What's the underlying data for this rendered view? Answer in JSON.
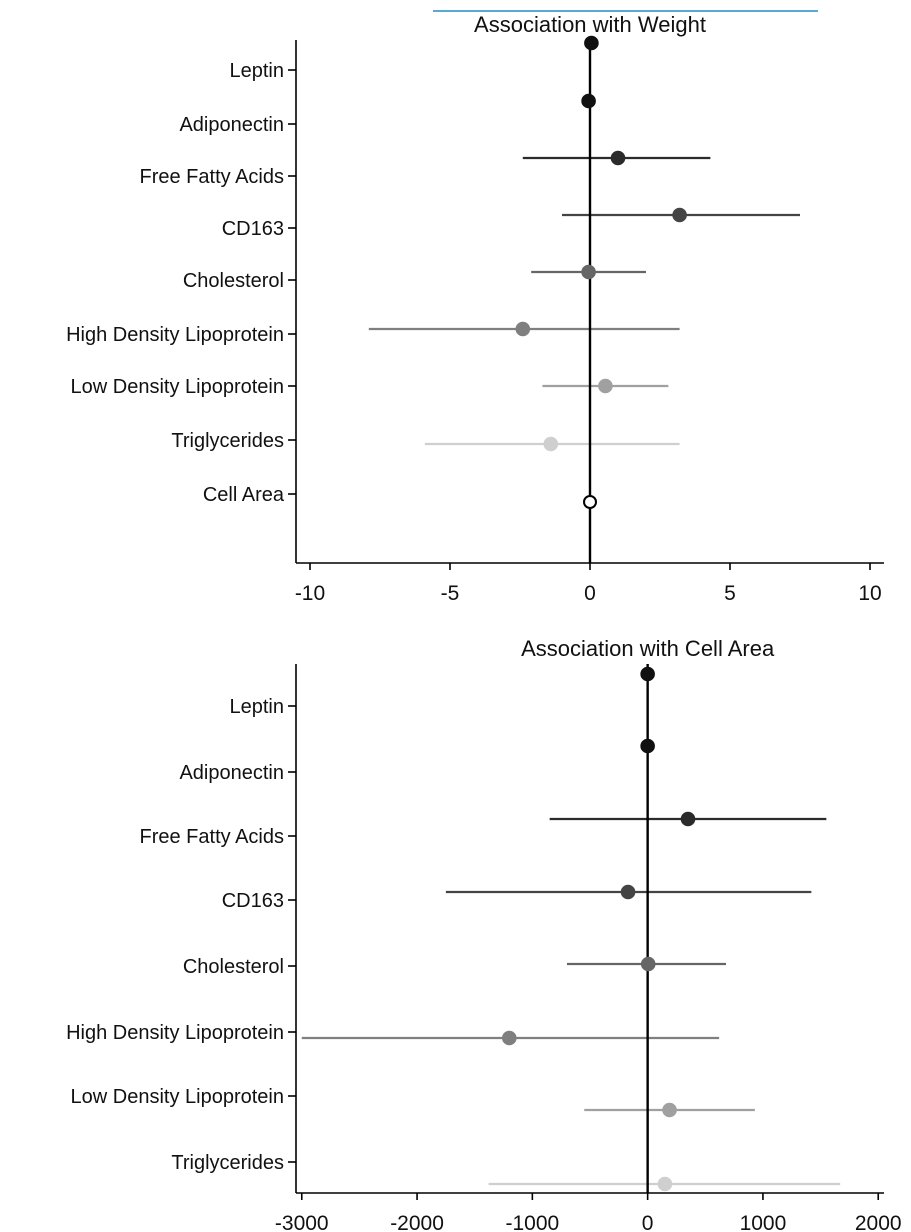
{
  "accent_bar_color": "#5aa8d8",
  "chart_data": [
    {
      "type": "scatter",
      "title": "Association with Weight",
      "xlabel": "",
      "ylabel": "",
      "xlim": [
        -10.5,
        10.5
      ],
      "xticks": [
        -10,
        -5,
        0,
        5,
        10
      ],
      "xtick_labels": [
        "-10",
        "-5",
        "0",
        "5",
        "10"
      ],
      "reference_x": 0,
      "grid": false,
      "categories": [
        "Leptin",
        "Adiponectin",
        "Free Fatty Acids",
        "CD163",
        "Cholesterol",
        "High Density Lipoprotein",
        "Low Density Lipoprotein",
        "Triglycerides",
        "Cell Area"
      ],
      "estimates": [
        0.05,
        -0.05,
        1.0,
        3.2,
        -0.05,
        -2.4,
        0.55,
        -1.4,
        0.0
      ],
      "ci_low": [
        0.05,
        -0.05,
        -2.4,
        -1.0,
        -2.1,
        -7.9,
        -1.7,
        -5.9,
        0.0
      ],
      "ci_high": [
        0.05,
        -0.05,
        4.3,
        7.5,
        2.0,
        3.2,
        2.8,
        3.2,
        0.0
      ],
      "colors": [
        "#111111",
        "#111111",
        "#2b2b2b",
        "#444444",
        "#666666",
        "#7f7f7f",
        "#a0a0a0",
        "#cfcfcf",
        "#111111"
      ],
      "hollow": [
        false,
        false,
        false,
        false,
        false,
        false,
        false,
        false,
        true
      ]
    },
    {
      "type": "scatter",
      "title": "Association with Cell Area",
      "xlabel": "",
      "ylabel": "",
      "xlim": [
        -3050,
        2050
      ],
      "xticks": [
        -3000,
        -2000,
        -1000,
        0,
        1000,
        2000
      ],
      "xtick_labels": [
        "-3000",
        "-2000",
        "-1000",
        "0",
        "1000",
        "2000"
      ],
      "reference_x": 0,
      "grid": false,
      "categories": [
        "Leptin",
        "Adiponectin",
        "Free Fatty Acids",
        "CD163",
        "Cholesterol",
        "High Density Lipoprotein",
        "Low Density Lipoprotein",
        "Triglycerides"
      ],
      "estimates": [
        0,
        0,
        350,
        -170,
        5,
        -1200,
        190,
        150
      ],
      "ci_low": [
        0,
        0,
        -850,
        -1750,
        -700,
        -3000,
        -550,
        -1380
      ],
      "ci_high": [
        0,
        0,
        1550,
        1420,
        680,
        620,
        930,
        1670
      ],
      "colors": [
        "#111111",
        "#111111",
        "#2b2b2b",
        "#444444",
        "#666666",
        "#7f7f7f",
        "#a0a0a0",
        "#cfcfcf"
      ],
      "hollow": [
        false,
        false,
        false,
        false,
        false,
        false,
        false,
        false
      ]
    }
  ]
}
